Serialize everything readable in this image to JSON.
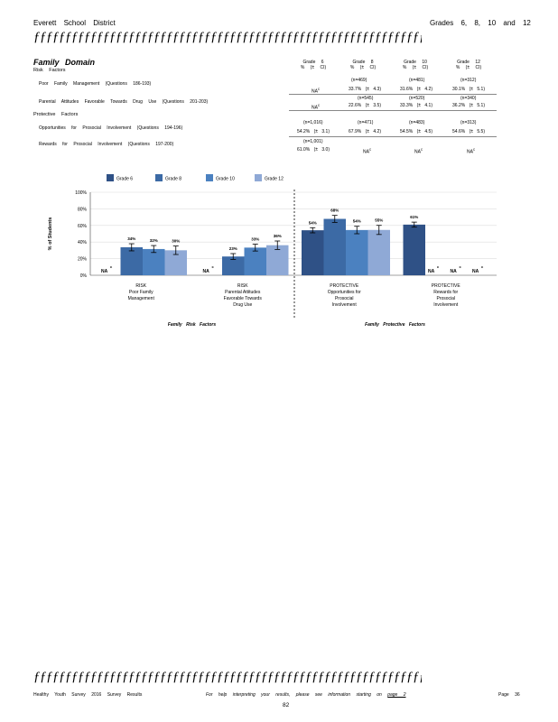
{
  "header": {
    "district": "Everett School District",
    "grades": "Grades 6, 8, 10 and 12",
    "rule": "ƒƒƒƒƒƒƒƒƒƒƒƒƒƒƒƒƒƒƒƒƒƒƒƒƒƒƒƒƒƒƒƒƒƒƒƒƒƒƒƒƒƒƒƒƒƒƒƒƒƒƒƒƒƒƒƒƒƒƒƒƒƒ"
  },
  "section": {
    "title": "Family Domain",
    "risk_label": "Risk Factors",
    "protective_label": "Protective Factors"
  },
  "table": {
    "columns": [
      {
        "grade": "Grade 6",
        "sub": "% (± CI)"
      },
      {
        "grade": "Grade 8",
        "sub": "% (± CI)"
      },
      {
        "grade": "Grade 10",
        "sub": "% (± CI)"
      },
      {
        "grade": "Grade 12",
        "sub": "% (± CI)"
      }
    ],
    "rows": [
      {
        "label": "Poor Family Management",
        "questions": "(Questions 186-193)",
        "n": [
          "",
          "(n=469)",
          "(n=481)",
          "(n=312)"
        ],
        "pct": [
          "NA",
          "33.7%",
          "31.6%",
          "30.1%"
        ],
        "ci": [
          "",
          "(± 4.3)",
          "(± 4.2)",
          "(± 5.1)"
        ],
        "sup": [
          "c",
          "",
          "",
          ""
        ]
      },
      {
        "label": "Parental Attitudes Favorable Towards Drug Use",
        "questions": "(Questions 201-203)",
        "n": [
          "",
          "(n=545)",
          "(n=520)",
          "(n=340)"
        ],
        "pct": [
          "NA",
          "22.6%",
          "33.3%",
          "36.2%"
        ],
        "ci": [
          "",
          "(± 3.5)",
          "(± 4.1)",
          "(± 5.1)"
        ],
        "sup": [
          "c",
          "",
          "",
          ""
        ]
      },
      {
        "label": "Opportunities for Prosocial Involvement",
        "questions": "(Questions 194-196)",
        "n": [
          "(n=1,016)",
          "(n=471)",
          "(n=483)",
          "(n=313)"
        ],
        "pct": [
          "54.2%",
          "67.9%",
          "54.5%",
          "54.6%"
        ],
        "ci": [
          "(± 3.1)",
          "(± 4.2)",
          "(± 4.5)",
          "(± 5.5)"
        ],
        "sup": [
          "",
          "",
          "",
          ""
        ]
      },
      {
        "label": "Rewards for Prosocial Involvement",
        "questions": "(Questions 197-200)",
        "n": [
          "(n=1,001)",
          "",
          "",
          ""
        ],
        "pct": [
          "61.0%",
          "NA",
          "NA",
          "NA"
        ],
        "ci": [
          "(± 3.0)",
          "",
          "",
          ""
        ],
        "sup": [
          "",
          "c",
          "c",
          "c"
        ]
      }
    ]
  },
  "chart_data": {
    "type": "bar",
    "ylabel": "% of Students",
    "ylim": [
      0,
      100
    ],
    "yticks": [
      "0%",
      "20%",
      "40%",
      "60%",
      "80%",
      "100%"
    ],
    "legend_position": "top",
    "legend": [
      "Grade 6",
      "Grade 8",
      "Grade 10",
      "Grade 12"
    ],
    "colors": [
      "#2f5186",
      "#3c6aa5",
      "#4b81c0",
      "#8fa9d6"
    ],
    "categories": [
      [
        "RISK",
        "Poor Family",
        "Management"
      ],
      [
        "RISK",
        "Parental Attitudes",
        "Favorable Towards",
        "Drug Use"
      ],
      [
        "PROTECTIVE",
        "Opportunities for",
        "Prosocial",
        "Involvement"
      ],
      [
        "PROTECTIVE",
        "Rewards for",
        "Prosocial",
        "Involvement"
      ]
    ],
    "series": [
      {
        "name": "Grade 6",
        "values": [
          null,
          null,
          54.2,
          61.0
        ],
        "ci": [
          null,
          null,
          3.1,
          3.0
        ]
      },
      {
        "name": "Grade 8",
        "values": [
          33.7,
          22.6,
          67.9,
          null
        ],
        "ci": [
          4.3,
          3.5,
          4.2,
          null
        ]
      },
      {
        "name": "Grade 10",
        "values": [
          31.6,
          33.3,
          54.5,
          null
        ],
        "ci": [
          4.2,
          4.1,
          4.5,
          null
        ]
      },
      {
        "name": "Grade 12",
        "values": [
          30.1,
          36.2,
          54.6,
          null
        ],
        "ci": [
          5.1,
          5.1,
          5.5,
          null
        ]
      }
    ],
    "bar_labels": [
      [
        null,
        null,
        "54%",
        "61%"
      ],
      [
        "34%",
        "23%",
        "68%",
        null
      ],
      [
        "32%",
        "33%",
        "54%",
        null
      ],
      [
        "30%",
        "36%",
        "55%",
        null
      ]
    ],
    "na_label": "NA",
    "na_sup": "c",
    "group_titles": [
      "Family Risk Factors",
      "Family Protective Factors"
    ]
  },
  "footer": {
    "rule": "ƒƒƒƒƒƒƒƒƒƒƒƒƒƒƒƒƒƒƒƒƒƒƒƒƒƒƒƒƒƒƒƒƒƒƒƒƒƒƒƒƒƒƒƒƒƒƒƒƒƒƒƒƒƒƒƒƒƒƒƒƒƒ",
    "survey": "Healthy Youth Survey 2016 Survey Results",
    "help_text": "For help interpreting your results, please see information starting on",
    "help_link": "page 2",
    "page_label": "Page 36",
    "page_number": "82"
  }
}
